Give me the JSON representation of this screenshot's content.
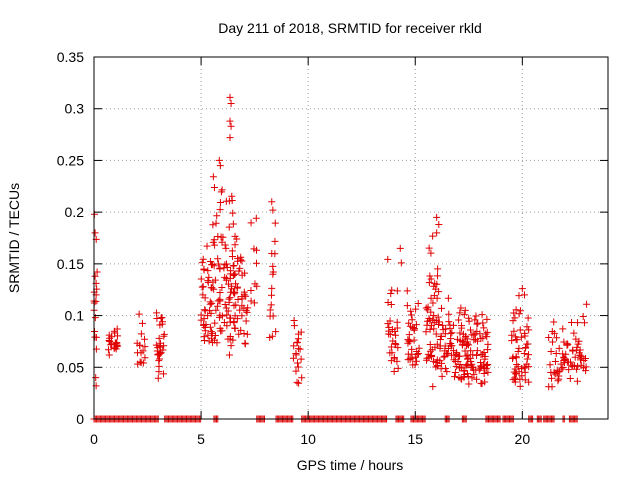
{
  "chart_data": {
    "type": "scatter",
    "title": "Day 211 of 2018, SRMTID for receiver rkld",
    "xlabel": "GPS time / hours",
    "ylabel": "SRMTID / TECUs",
    "xlim": [
      0,
      24
    ],
    "ylim": [
      0,
      0.35
    ],
    "x_ticks": [
      0,
      5,
      10,
      15,
      20
    ],
    "y_ticks": [
      0,
      0.05,
      0.1,
      0.15,
      0.2,
      0.25,
      0.3,
      0.35
    ],
    "x_tick_labels": [
      "0",
      "5",
      "10",
      "15",
      "20"
    ],
    "y_tick_labels": [
      "0",
      "0.05",
      "0.1",
      "0.15",
      "0.2",
      "0.25",
      "0.3",
      "0.35"
    ],
    "grid": true,
    "series": [
      {
        "name": "SRMTID",
        "color": "#e00000",
        "marker": "plus",
        "clusters": [
          {
            "x": [
              0.0,
              0.15
            ],
            "y": [
              0.03,
              0.2
            ],
            "n": 14
          },
          {
            "x": [
              0.6,
              1.1
            ],
            "y": [
              0.06,
              0.1
            ],
            "n": 22
          },
          {
            "x": [
              2.0,
              2.4
            ],
            "y": [
              0.04,
              0.11
            ],
            "n": 16
          },
          {
            "x": [
              2.9,
              3.3
            ],
            "y": [
              0.035,
              0.12
            ],
            "n": 30
          },
          {
            "x": [
              5.0,
              5.5
            ],
            "y": [
              0.07,
              0.18
            ],
            "n": 40
          },
          {
            "x": [
              5.5,
              6.0
            ],
            "y": [
              0.07,
              0.25
            ],
            "n": 45
          },
          {
            "x": [
              6.0,
              6.6
            ],
            "y": [
              0.06,
              0.24
            ],
            "n": 55
          },
          {
            "x": [
              6.5,
              7.2
            ],
            "y": [
              0.07,
              0.18
            ],
            "n": 40
          },
          {
            "x": [
              7.3,
              7.6
            ],
            "y": [
              0.1,
              0.2
            ],
            "n": 10
          },
          {
            "x": [
              8.2,
              8.5
            ],
            "y": [
              0.06,
              0.21
            ],
            "n": 14
          },
          {
            "x": [
              9.3,
              9.7
            ],
            "y": [
              0.03,
              0.11
            ],
            "n": 20
          },
          {
            "x": [
              13.7,
              14.2
            ],
            "y": [
              0.035,
              0.16
            ],
            "n": 30
          },
          {
            "x": [
              14.6,
              15.2
            ],
            "y": [
              0.05,
              0.13
            ],
            "n": 35
          },
          {
            "x": [
              15.5,
              16.1
            ],
            "y": [
              0.03,
              0.19
            ],
            "n": 55
          },
          {
            "x": [
              16.1,
              17.0
            ],
            "y": [
              0.03,
              0.12
            ],
            "n": 50
          },
          {
            "x": [
              17.0,
              18.4
            ],
            "y": [
              0.03,
              0.11
            ],
            "n": 110
          },
          {
            "x": [
              19.5,
              20.3
            ],
            "y": [
              0.03,
              0.13
            ],
            "n": 55
          },
          {
            "x": [
              21.2,
              22.0
            ],
            "y": [
              0.03,
              0.1
            ],
            "n": 35
          },
          {
            "x": [
              22.0,
              23.0
            ],
            "y": [
              0.035,
              0.11
            ],
            "n": 40
          }
        ],
        "points": [
          [
            0.02,
            0.198
          ],
          [
            0.05,
            0.18
          ],
          [
            0.05,
            0.138
          ],
          [
            0.1,
            0.12
          ],
          [
            0.08,
            0.04
          ],
          [
            0.1,
            0.032
          ],
          [
            6.35,
            0.311
          ],
          [
            6.4,
            0.305
          ],
          [
            6.35,
            0.288
          ],
          [
            6.4,
            0.283
          ],
          [
            6.35,
            0.272
          ],
          [
            5.85,
            0.25
          ],
          [
            5.9,
            0.245
          ],
          [
            8.3,
            0.21
          ],
          [
            8.35,
            0.202
          ],
          [
            8.3,
            0.16
          ],
          [
            8.35,
            0.14
          ],
          [
            14.3,
            0.165
          ],
          [
            14.35,
            0.151
          ],
          [
            16.0,
            0.195
          ],
          [
            16.1,
            0.188
          ],
          [
            16.0,
            0.18
          ],
          [
            20.0,
            0.126
          ],
          [
            20.1,
            0.12
          ],
          [
            23.0,
            0.111
          ],
          [
            22.9,
            0.093
          ]
        ],
        "zero_ranges": [
          [
            0.0,
            3.0
          ],
          [
            3.3,
            5.0
          ],
          [
            5.6,
            5.8
          ],
          [
            7.6,
            8.0
          ],
          [
            8.5,
            9.3
          ],
          [
            9.7,
            13.7
          ],
          [
            14.1,
            14.5
          ],
          [
            14.8,
            15.5
          ],
          [
            16.4,
            16.6
          ],
          [
            17.2,
            17.4
          ],
          [
            18.3,
            19.0
          ],
          [
            19.1,
            19.6
          ],
          [
            20.3,
            20.5
          ],
          [
            20.7,
            20.9
          ],
          [
            21.0,
            21.5
          ],
          [
            21.9,
            22.0
          ],
          [
            22.2,
            22.6
          ]
        ]
      }
    ]
  }
}
